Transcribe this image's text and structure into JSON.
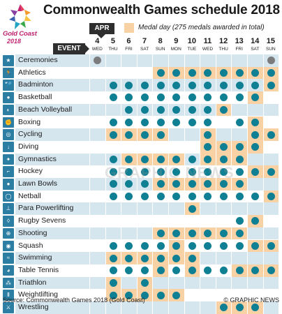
{
  "title": "Commonwealth Games schedule 2018",
  "logo": {
    "text": "Gold Coast",
    "year": "2018"
  },
  "month_tag": "APR",
  "event_tag": "EVENT",
  "legend": {
    "medal_text": "Medal day (275 medals awarded in total)",
    "medal_color": "#f8d2a4"
  },
  "colors": {
    "session_dot": "#0f7f93",
    "ceremony_dot": "#7c7c7c",
    "stripe": "#d6e6ef",
    "icon_bg": "#2c7fa3"
  },
  "days": [
    {
      "num": "4",
      "wd": "WED"
    },
    {
      "num": "5",
      "wd": "THU"
    },
    {
      "num": "6",
      "wd": "FRI"
    },
    {
      "num": "7",
      "wd": "SAT"
    },
    {
      "num": "8",
      "wd": "SUN"
    },
    {
      "num": "9",
      "wd": "MON"
    },
    {
      "num": "10",
      "wd": "TUE"
    },
    {
      "num": "11",
      "wd": "WED"
    },
    {
      "num": "12",
      "wd": "THU"
    },
    {
      "num": "13",
      "wd": "FRI"
    },
    {
      "num": "14",
      "wd": "SAT"
    },
    {
      "num": "15",
      "wd": "SUN"
    }
  ],
  "events": [
    {
      "name": "Ceremonies",
      "icon": "ceremony-icon",
      "sessions": [
        0,
        11
      ],
      "medals": [],
      "ceremony": true
    },
    {
      "name": "Athletics",
      "icon": "athletics-icon",
      "sessions": [
        4,
        5,
        6,
        7,
        8,
        9,
        10,
        11
      ],
      "medals": [
        4,
        5,
        6,
        7,
        8,
        9,
        10,
        11
      ]
    },
    {
      "name": "Badminton",
      "icon": "badminton-icon",
      "sessions": [
        1,
        2,
        3,
        4,
        5,
        6,
        7,
        8,
        9,
        10,
        11
      ],
      "medals": [
        11
      ]
    },
    {
      "name": "Basketball",
      "icon": "basketball-icon",
      "sessions": [
        1,
        2,
        3,
        4,
        5,
        6,
        7,
        8,
        9,
        10
      ],
      "medals": [
        10
      ]
    },
    {
      "name": "Beach Volleyball",
      "icon": "beach-volleyball-icon",
      "sessions": [
        2,
        3,
        4,
        5,
        6,
        7,
        8
      ],
      "medals": [
        8
      ]
    },
    {
      "name": "Boxing",
      "icon": "boxing-icon",
      "sessions": [
        1,
        2,
        3,
        4,
        5,
        6,
        7,
        9,
        10
      ],
      "medals": [
        10
      ]
    },
    {
      "name": "Cycling",
      "icon": "cycling-icon",
      "sessions": [
        1,
        2,
        3,
        4,
        7,
        10,
        11
      ],
      "medals": [
        1,
        2,
        3,
        4,
        7,
        10,
        11
      ]
    },
    {
      "name": "Diving",
      "icon": "diving-icon",
      "sessions": [
        7,
        8,
        9,
        10
      ],
      "medals": [
        7,
        8,
        9,
        10
      ]
    },
    {
      "name": "Gymnastics",
      "icon": "gymnastics-icon",
      "sessions": [
        1,
        2,
        3,
        4,
        5,
        6,
        7,
        8,
        9
      ],
      "medals": [
        2,
        3,
        4,
        5,
        7,
        8,
        9
      ]
    },
    {
      "name": "Hockey",
      "icon": "hockey-icon",
      "sessions": [
        1,
        2,
        3,
        4,
        5,
        6,
        7,
        8,
        9,
        10,
        11
      ],
      "medals": [
        10,
        11
      ]
    },
    {
      "name": "Lawn Bowls",
      "icon": "lawn-bowls-icon",
      "sessions": [
        1,
        2,
        3,
        4,
        5,
        6,
        7,
        8,
        9
      ],
      "medals": [
        4,
        5,
        6,
        7,
        8,
        9
      ]
    },
    {
      "name": "Netball",
      "icon": "netball-icon",
      "sessions": [
        1,
        2,
        3,
        4,
        5,
        6,
        7,
        8,
        9,
        10,
        11
      ],
      "medals": [
        11
      ]
    },
    {
      "name": "Para Powerlifting",
      "icon": "para-powerlifting-icon",
      "sessions": [
        6
      ],
      "medals": [
        6
      ]
    },
    {
      "name": "Rugby Sevens",
      "icon": "rugby-sevens-icon",
      "sessions": [
        9,
        10
      ],
      "medals": [
        10
      ]
    },
    {
      "name": "Shooting",
      "icon": "shooting-icon",
      "sessions": [
        4,
        5,
        6,
        7,
        8,
        9
      ],
      "medals": [
        4,
        5,
        6,
        7,
        8,
        9
      ]
    },
    {
      "name": "Squash",
      "icon": "squash-icon",
      "sessions": [
        1,
        2,
        3,
        4,
        5,
        6,
        7,
        8,
        9,
        10,
        11
      ],
      "medals": [
        5,
        10,
        11
      ]
    },
    {
      "name": "Swimming",
      "icon": "swimming-icon",
      "sessions": [
        1,
        2,
        3,
        4,
        5,
        6
      ],
      "medals": [
        1,
        2,
        3,
        4,
        5,
        6
      ]
    },
    {
      "name": "Table Tennis",
      "icon": "table-tennis-icon",
      "sessions": [
        1,
        2,
        3,
        4,
        5,
        6,
        7,
        8,
        9,
        10,
        11
      ],
      "medals": [
        4,
        6,
        9,
        10,
        11
      ]
    },
    {
      "name": "Triathlon",
      "icon": "triathlon-icon",
      "sessions": [
        1,
        3
      ],
      "medals": [
        1,
        3
      ]
    },
    {
      "name": "Weightlifting",
      "icon": "weightlifting-icon",
      "sessions": [
        1,
        2,
        3,
        4,
        5
      ],
      "medals": [
        1,
        2,
        3,
        4,
        5
      ]
    },
    {
      "name": "Wrestling",
      "icon": "wrestling-icon",
      "sessions": [
        8,
        9,
        10
      ],
      "medals": [
        8,
        9,
        10
      ]
    }
  ],
  "watermark": "GRAPHIC NEWS",
  "source": "Source: Commonwealth Games 2018 (Gold Coast)",
  "credit": "© GRAPHIC NEWS"
}
